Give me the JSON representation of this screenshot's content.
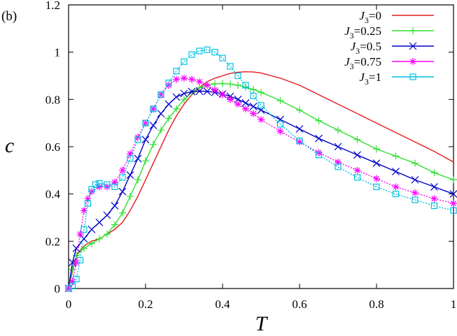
{
  "chart_data": {
    "type": "line",
    "panel_label": "(b)",
    "xlabel": "T",
    "ylabel": "c",
    "xlim": [
      0,
      1
    ],
    "ylim": [
      0,
      1.2
    ],
    "xticks": [
      0,
      0.2,
      0.4,
      0.6,
      0.8,
      1
    ],
    "xtick_labels": [
      "0",
      "0.2",
      "0.4",
      "0.6",
      "0.8",
      "1"
    ],
    "yticks": [
      0,
      0.2,
      0.4,
      0.6,
      0.8,
      1,
      1.2
    ],
    "ytick_labels": [
      "0",
      "0.2",
      "0.4",
      "0.6",
      "0.8",
      "1",
      "1.2"
    ],
    "grid": false,
    "legend_position": "top-right",
    "series": [
      {
        "name": "J3=0",
        "label_prefix": "J",
        "label_sub": "3",
        "label_suffix": "=0",
        "color": "#e41a1c",
        "marker": "none",
        "dashed": false,
        "x": [
          0,
          0.01,
          0.02,
          0.04,
          0.06,
          0.08,
          0.1,
          0.12,
          0.14,
          0.16,
          0.18,
          0.2,
          0.22,
          0.24,
          0.26,
          0.28,
          0.3,
          0.32,
          0.34,
          0.36,
          0.38,
          0.4,
          0.42,
          0.44,
          0.46,
          0.48,
          0.5,
          0.55,
          0.6,
          0.65,
          0.7,
          0.75,
          0.8,
          0.85,
          0.9,
          0.95,
          1.0
        ],
        "y": [
          0,
          0.07,
          0.14,
          0.18,
          0.2,
          0.21,
          0.23,
          0.25,
          0.28,
          0.33,
          0.39,
          0.46,
          0.53,
          0.6,
          0.67,
          0.73,
          0.78,
          0.82,
          0.85,
          0.875,
          0.89,
          0.9,
          0.91,
          0.915,
          0.917,
          0.916,
          0.912,
          0.89,
          0.86,
          0.82,
          0.78,
          0.74,
          0.7,
          0.66,
          0.62,
          0.58,
          0.535
        ]
      },
      {
        "name": "J3=0.25",
        "label_prefix": "J",
        "label_sub": "3",
        "label_suffix": "=0.25",
        "color": "#2ee02e",
        "marker": "plus",
        "dashed": false,
        "x": [
          0,
          0.01,
          0.02,
          0.04,
          0.06,
          0.08,
          0.1,
          0.12,
          0.14,
          0.16,
          0.18,
          0.2,
          0.22,
          0.24,
          0.26,
          0.28,
          0.3,
          0.32,
          0.34,
          0.36,
          0.38,
          0.4,
          0.42,
          0.44,
          0.46,
          0.48,
          0.5,
          0.55,
          0.6,
          0.65,
          0.7,
          0.75,
          0.8,
          0.85,
          0.9,
          0.95,
          1.0
        ],
        "y": [
          0,
          0.08,
          0.14,
          0.17,
          0.19,
          0.21,
          0.23,
          0.27,
          0.32,
          0.39,
          0.46,
          0.54,
          0.61,
          0.67,
          0.72,
          0.76,
          0.8,
          0.83,
          0.85,
          0.86,
          0.866,
          0.867,
          0.865,
          0.86,
          0.852,
          0.842,
          0.83,
          0.795,
          0.755,
          0.71,
          0.67,
          0.63,
          0.59,
          0.56,
          0.53,
          0.49,
          0.46
        ]
      },
      {
        "name": "J3=0.5",
        "label_prefix": "J",
        "label_sub": "3",
        "label_suffix": "=0.5",
        "color": "#0000c8",
        "marker": "cross",
        "dashed": false,
        "x": [
          0,
          0.01,
          0.02,
          0.04,
          0.06,
          0.08,
          0.1,
          0.12,
          0.14,
          0.16,
          0.18,
          0.2,
          0.22,
          0.24,
          0.26,
          0.28,
          0.3,
          0.32,
          0.34,
          0.36,
          0.38,
          0.4,
          0.42,
          0.44,
          0.46,
          0.48,
          0.5,
          0.55,
          0.6,
          0.65,
          0.7,
          0.75,
          0.8,
          0.85,
          0.9,
          0.95,
          1.0
        ],
        "y": [
          0,
          0.11,
          0.17,
          0.21,
          0.25,
          0.28,
          0.31,
          0.35,
          0.41,
          0.48,
          0.55,
          0.63,
          0.69,
          0.74,
          0.78,
          0.81,
          0.825,
          0.833,
          0.835,
          0.834,
          0.83,
          0.823,
          0.813,
          0.8,
          0.785,
          0.77,
          0.755,
          0.715,
          0.675,
          0.635,
          0.6,
          0.565,
          0.53,
          0.495,
          0.46,
          0.43,
          0.4
        ]
      },
      {
        "name": "J3=0.75",
        "label_prefix": "J",
        "label_sub": "3",
        "label_suffix": "=0.75",
        "color": "#ff00ff",
        "marker": "star",
        "dashed": true,
        "x": [
          0,
          0.01,
          0.02,
          0.03,
          0.04,
          0.05,
          0.06,
          0.08,
          0.1,
          0.12,
          0.14,
          0.16,
          0.18,
          0.2,
          0.22,
          0.24,
          0.26,
          0.28,
          0.3,
          0.32,
          0.34,
          0.36,
          0.38,
          0.4,
          0.42,
          0.44,
          0.46,
          0.48,
          0.5,
          0.55,
          0.6,
          0.65,
          0.7,
          0.75,
          0.8,
          0.85,
          0.9,
          0.95,
          1.0
        ],
        "y": [
          0,
          0.03,
          0.11,
          0.23,
          0.33,
          0.38,
          0.41,
          0.43,
          0.43,
          0.45,
          0.5,
          0.57,
          0.64,
          0.7,
          0.76,
          0.82,
          0.86,
          0.885,
          0.89,
          0.885,
          0.875,
          0.86,
          0.84,
          0.82,
          0.8,
          0.78,
          0.76,
          0.74,
          0.715,
          0.665,
          0.62,
          0.575,
          0.535,
          0.5,
          0.465,
          0.43,
          0.405,
          0.38,
          0.36
        ]
      },
      {
        "name": "J3=1",
        "label_prefix": "J",
        "label_sub": "3",
        "label_suffix": "=1",
        "color": "#00c0e0",
        "marker": "square",
        "dashed": true,
        "x": [
          0,
          0.01,
          0.02,
          0.03,
          0.04,
          0.05,
          0.06,
          0.07,
          0.08,
          0.1,
          0.12,
          0.14,
          0.16,
          0.18,
          0.2,
          0.22,
          0.24,
          0.26,
          0.28,
          0.3,
          0.32,
          0.34,
          0.36,
          0.38,
          0.4,
          0.42,
          0.44,
          0.46,
          0.48,
          0.5,
          0.55,
          0.6,
          0.65,
          0.7,
          0.75,
          0.8,
          0.85,
          0.9,
          0.95,
          1.0
        ],
        "y": [
          0,
          0.01,
          0.04,
          0.12,
          0.25,
          0.36,
          0.42,
          0.44,
          0.445,
          0.44,
          0.43,
          0.47,
          0.55,
          0.63,
          0.7,
          0.76,
          0.82,
          0.87,
          0.92,
          0.96,
          0.99,
          1.005,
          1.01,
          1.0,
          0.975,
          0.94,
          0.9,
          0.86,
          0.815,
          0.775,
          0.695,
          0.625,
          0.565,
          0.515,
          0.47,
          0.43,
          0.4,
          0.375,
          0.35,
          0.33
        ]
      }
    ]
  }
}
